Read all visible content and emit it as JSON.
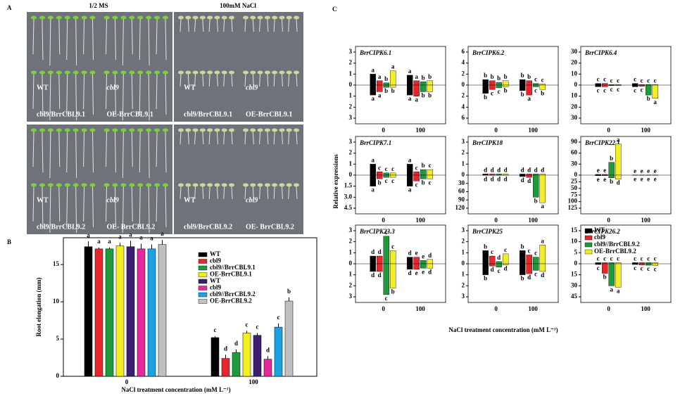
{
  "panel_a": {
    "label": "A",
    "columns": [
      "1/2 MS",
      "100mM NaCl"
    ],
    "quadrants": [
      {
        "labels": [
          "WT",
          "cbl9",
          "cbl9/BrrCBL9.1",
          "OE-BrrCBL9.1"
        ]
      },
      {
        "labels": [
          "WT",
          "cbl9",
          "cbl9/BrrCBL9.1",
          "OE-BrrCBL9.1"
        ]
      },
      {
        "labels": [
          "WT",
          "cbl9",
          "cbl9/BrrCBL9.2",
          "OE- BrrCBL9.2"
        ]
      },
      {
        "labels": [
          "WT",
          "cbl9",
          "cbl9/BrrCBL9.2",
          "OE- BrrCBL9.2"
        ]
      }
    ]
  },
  "chart_data": [
    {
      "type": "bar",
      "label": "B",
      "ylabel": "Root elongation (mm)",
      "xlabel": "NaCl treatment concentration (mM L⁻¹)",
      "categories": [
        "0",
        "100"
      ],
      "ylim": [
        0,
        18.6
      ],
      "yticks": [
        0,
        5,
        10,
        15
      ],
      "series": [
        {
          "name": "WT",
          "color": "#000000",
          "values": [
            17.4,
            5.2
          ],
          "errors": [
            0.7,
            0.2
          ],
          "letters": [
            "a",
            "c"
          ]
        },
        {
          "name": "cbl9",
          "color": "#e8262b",
          "values": [
            17.1,
            2.4
          ],
          "errors": [
            0.2,
            0.5
          ],
          "letters": [
            "a",
            "d"
          ]
        },
        {
          "name": "cbl9//BrrCBL9.1",
          "color": "#1e9a3a",
          "values": [
            17.1,
            3.2
          ],
          "errors": [
            0.2,
            0.4
          ],
          "letters": [
            "a",
            "d"
          ]
        },
        {
          "name": "OE-BrrCBL9.1",
          "color": "#f5ee1e",
          "values": [
            17.5,
            5.8
          ],
          "errors": [
            0.4,
            0.3
          ],
          "letters": [
            "a",
            "c"
          ]
        },
        {
          "name": "WT",
          "color": "#3b1f6e",
          "values": [
            17.4,
            5.5
          ],
          "errors": [
            0.8,
            0.3
          ],
          "letters": [
            "a",
            "c"
          ]
        },
        {
          "name": "cbl9",
          "color": "#e6289c",
          "values": [
            17.1,
            2.3
          ],
          "errors": [
            0.7,
            0.4
          ],
          "letters": [
            "a",
            "d"
          ]
        },
        {
          "name": "cbl9//BrrCBL9.2",
          "color": "#1aa3e0",
          "values": [
            17.1,
            6.6
          ],
          "errors": [
            0.6,
            0.5
          ],
          "letters": [
            "a",
            "c"
          ]
        },
        {
          "name": "OE-BrrCBL9.2",
          "color": "#c0c0c0",
          "values": [
            17.7,
            10.1
          ],
          "errors": [
            0.6,
            0.5
          ],
          "letters": [
            "a",
            "b"
          ]
        }
      ]
    },
    {
      "type": "diverging-bar",
      "label": "C",
      "ylabel": "Relative expressions",
      "xlabel": "NaCl treatment concentration (mM L⁻¹)",
      "categories": [
        "0",
        "100"
      ],
      "legend": "upper left",
      "series": [
        {
          "name": "WT",
          "color": "#000000"
        },
        {
          "name": "cbl9",
          "color": "#e8262b"
        },
        {
          "name": "cbl9//BrrCBL9.2",
          "color": "#1e9a3a"
        },
        {
          "name": "OE-BrrCBL9.2",
          "color": "#f5ee1e"
        }
      ],
      "panels": [
        {
          "title": "BrrCIPK6.1",
          "ylim_up": [
            0,
            3
          ],
          "yticks_up": [
            0,
            1,
            2,
            3
          ],
          "ylim_down": [
            0,
            3
          ],
          "yticks_down": [
            1,
            2,
            3
          ],
          "up": [
            [
              1,
              0.4,
              0.2,
              1.3
            ],
            [
              0.9,
              0.4,
              0.3,
              0.4
            ]
          ],
          "down": [
            [
              0.9,
              0.6,
              0.2,
              0.2
            ],
            [
              0.9,
              1.0,
              0.6,
              0.6
            ]
          ],
          "up_letters": [
            [
              "a",
              "a",
              "b",
              "a"
            ],
            [
              "a",
              "a",
              "b",
              "b"
            ]
          ],
          "down_letters": [
            [
              "a",
              "a",
              "b",
              "b"
            ],
            [
              "a",
              "a",
              "b",
              "b"
            ]
          ]
        },
        {
          "title": "BrrCIPK6.2",
          "ylim_up": [
            0,
            6
          ],
          "yticks_up": [
            0,
            2,
            4,
            6
          ],
          "ylim_down": [
            0,
            6
          ],
          "yticks_down": [
            2,
            4,
            6
          ],
          "up": [
            [
              1,
              0.8,
              0.5,
              0.8
            ],
            [
              1,
              0.8,
              0.3,
              0.2
            ]
          ],
          "down": [
            [
              1.5,
              0.8,
              0.5,
              0.3
            ],
            [
              1,
              1.8,
              0.3,
              0.8
            ]
          ],
          "up_letters": [
            [
              "b",
              "b",
              "b",
              "b"
            ],
            [
              "b",
              "b",
              "c",
              "c"
            ]
          ],
          "down_letters": [
            [
              "b",
              "c",
              "c",
              "b"
            ],
            [
              "b",
              "a",
              "c",
              "b"
            ]
          ]
        },
        {
          "title": "BrrCIPK6.4",
          "ylim_up": [
            0,
            30
          ],
          "yticks_up": [
            0,
            10,
            20,
            30
          ],
          "ylim_down": [
            0,
            30
          ],
          "yticks_down": [
            10,
            20,
            30
          ],
          "up": [
            [
              1.5,
              1.5,
              0.5,
              0.5
            ],
            [
              1.5,
              0.5,
              0.5,
              0.5
            ]
          ],
          "down": [
            [
              1.5,
              1.5,
              0.5,
              0.5
            ],
            [
              1.5,
              1,
              9,
              12
            ]
          ],
          "up_letters": [
            [
              "c",
              "c",
              "c",
              "c"
            ],
            [
              "c",
              "c",
              "c",
              "c"
            ]
          ],
          "down_letters": [
            [
              "c",
              "c",
              "c",
              "c"
            ],
            [
              "c",
              "c",
              "b",
              "a"
            ]
          ]
        },
        {
          "title": "BrrCIPK7.1",
          "ylim_up": [
            0,
            3
          ],
          "yticks_up": [
            0,
            1,
            2,
            3
          ],
          "ylim_down": [
            0,
            4.5
          ],
          "yticks_down": [
            1.5,
            {
              "value": 3,
              "label": "3.0"
            },
            4.5
          ],
          "up": [
            [
              1,
              0.3,
              0.2,
              0.2
            ],
            [
              1,
              0.3,
              0.5,
              0.5
            ]
          ],
          "down": [
            [
              1.5,
              0.5,
              0.3,
              0.3
            ],
            [
              1.5,
              0.8,
              0.5,
              0.5
            ]
          ],
          "up_letters": [
            [
              "a",
              "c",
              "c",
              "c"
            ],
            [
              "a",
              "c",
              "b",
              "c"
            ]
          ],
          "down_letters": [
            [
              "a",
              "b",
              "c",
              "c"
            ],
            [
              "a",
              "c",
              "b",
              "c"
            ]
          ]
        },
        {
          "title": "BrrCIPK18",
          "ylim_up": [
            0,
            3
          ],
          "yticks_up": [
            0,
            1,
            2,
            3
          ],
          "ylim_down": [
            0,
            120
          ],
          "yticks_down": [
            30,
            60,
            90,
            120
          ],
          "up": [
            [
              0.1,
              0.1,
              0.1,
              0.1
            ],
            [
              0.1,
              0.1,
              0.1,
              0.1
            ]
          ],
          "down": [
            [
              0.5,
              0.5,
              0.5,
              0.5
            ],
            [
              5,
              8,
              80,
              100
            ]
          ],
          "up_letters": [
            [
              "d",
              "d",
              "d",
              "d"
            ],
            [
              "d",
              "d",
              "d",
              "d"
            ]
          ],
          "down_letters": [
            [
              "d",
              "d",
              "d",
              "d"
            ],
            [
              "d",
              "d",
              "b",
              "a"
            ]
          ]
        },
        {
          "title": "BrrCIPK22.1",
          "ylim_up": [
            0,
            90
          ],
          "yticks_up": [
            0,
            30,
            60,
            90
          ],
          "ylim_down": [
            0,
            125
          ],
          "yticks_down": [
            25,
            50,
            75,
            100,
            125
          ],
          "up": [
            [
              2,
              2,
              35,
              85
            ],
            [
              0.5,
              0.5,
              0.5,
              0.5
            ]
          ],
          "down": [
            [
              2,
              2,
              10,
              15
            ],
            [
              0.5,
              0.5,
              0.5,
              0.5
            ]
          ],
          "up_letters": [
            [
              "e",
              "e",
              "b",
              "a"
            ],
            [
              "e",
              "e",
              "e",
              "e"
            ]
          ],
          "down_letters": [
            [
              "e",
              "e",
              "b",
              "d"
            ],
            [
              "e",
              "e",
              "e",
              "e"
            ]
          ]
        },
        {
          "title": "BrrCIPK23.3",
          "ylim_up": [
            0,
            3
          ],
          "yticks_up": [
            0,
            1,
            2,
            3
          ],
          "ylim_down": [
            0,
            3
          ],
          "yticks_down": [
            1,
            2,
            3
          ],
          "up": [
            [
              0.7,
              0.7,
              2.5,
              1.2
            ],
            [
              0.6,
              0.6,
              0.3,
              0.4
            ]
          ],
          "down": [
            [
              0.7,
              0.7,
              2.8,
              2.2
            ],
            [
              0.5,
              0.5,
              0.4,
              0.4
            ]
          ],
          "up_letters": [
            [
              "d",
              "d",
              "c",
              "c"
            ],
            [
              "d",
              "e",
              "e",
              "d"
            ]
          ],
          "down_letters": [
            [
              "d",
              "d",
              "c",
              "b"
            ],
            [
              "d",
              "e",
              "e",
              "d"
            ]
          ]
        },
        {
          "title": "BrrCIPK25",
          "ylim_up": [
            0,
            3
          ],
          "yticks_up": [
            0,
            1,
            2,
            3
          ],
          "ylim_down": [
            0,
            3
          ],
          "yticks_down": [
            1,
            2,
            3
          ],
          "up": [
            [
              1.2,
              0.7,
              0.2,
              0.9
            ],
            [
              1.2,
              0.8,
              0.6,
              1.7
            ]
          ],
          "down": [
            [
              1,
              0.2,
              0.3,
              0.1
            ],
            [
              1,
              0.9,
              0.6,
              0.7
            ]
          ],
          "up_letters": [
            [
              "b",
              "c",
              "d",
              "c"
            ],
            [
              "b",
              "c",
              "c",
              "a"
            ]
          ],
          "down_letters": [
            [
              "b",
              "d",
              "c",
              "d"
            ],
            [
              "b",
              "d",
              "c",
              "d"
            ]
          ]
        },
        {
          "title": "BrrCIPK26.2",
          "ylim_up": [
            0,
            15
          ],
          "yticks_up": [
            0,
            5,
            10,
            15
          ],
          "ylim_down": [
            0,
            45
          ],
          "yticks_down": [
            15,
            30,
            45
          ],
          "up": [
            [
              0.5,
              0.5,
              0.5,
              0.5
            ],
            [
              0.5,
              0.5,
              0.5,
              0.5
            ]
          ],
          "down": [
            [
              1,
              13,
              30,
              32
            ],
            [
              1,
              1.5,
              2,
              2.5
            ]
          ],
          "up_letters": [
            [
              "c",
              "c",
              "c",
              "c"
            ],
            [
              "c",
              "c",
              "c",
              "c"
            ]
          ],
          "down_letters": [
            [
              "c",
              "b",
              "a",
              "a"
            ],
            [
              "c",
              "c",
              "c",
              "c"
            ]
          ]
        }
      ]
    }
  ]
}
